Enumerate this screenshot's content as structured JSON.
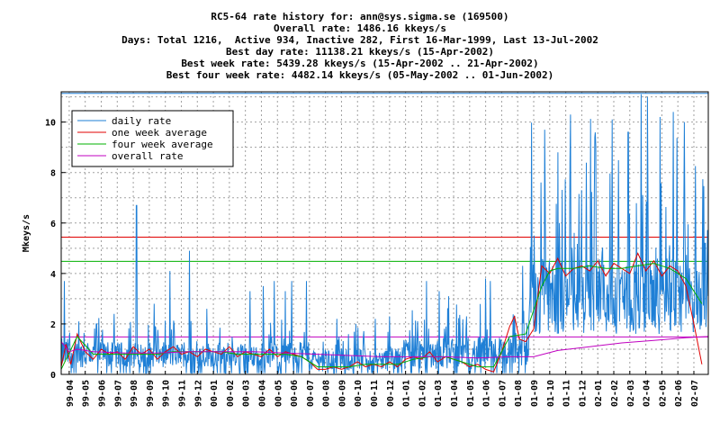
{
  "header": {
    "line1": "RC5-64 rate history for: ann@sys.sigma.se (169500)",
    "line2": "Overall rate: 1486.16 kkeys/s",
    "line3": "Days: Total 1216,  Active 934, Inactive 282, First 16-Mar-1999, Last 13-Jul-2002",
    "line4": "Best day rate: 11138.21 kkeys/s (15-Apr-2002)",
    "line5": "Best week rate: 5439.28 kkeys/s (15-Apr-2002 .. 21-Apr-2002)",
    "line6": "Best four week rate: 4482.14 kkeys/s (05-May-2002 .. 01-Jun-2002)"
  },
  "chart_data": {
    "type": "line",
    "ylabel": "Mkeys/s",
    "xlabel": "",
    "ylim": [
      0,
      11.2
    ],
    "yticks": [
      0,
      2,
      4,
      6,
      8,
      10
    ],
    "grid": true,
    "legend_position": "top-left",
    "x_categories": [
      "99-04",
      "99-05",
      "99-06",
      "99-07",
      "99-08",
      "99-09",
      "99-10",
      "99-11",
      "99-12",
      "00-01",
      "00-02",
      "00-03",
      "00-04",
      "00-05",
      "00-06",
      "00-07",
      "00-08",
      "00-09",
      "00-10",
      "00-11",
      "00-12",
      "01-01",
      "01-02",
      "01-03",
      "01-04",
      "01-05",
      "01-06",
      "01-07",
      "01-08",
      "01-09",
      "01-10",
      "01-11",
      "01-12",
      "02-01",
      "02-02",
      "02-03",
      "02-04",
      "02-05",
      "02-06",
      "02-07"
    ],
    "x_range_months": [
      0,
      40.4
    ],
    "series": [
      {
        "name": "daily rate",
        "color": "#1e7fd6",
        "values_summary": "daily points; approx 0.2-2.5 Mkeys/s through mid 2001 with spikes to ~6.7 at 99-08 and ~5.0 at 99-12, near 0 at 01-07, rising to 4-11 Mkeys/s from 01-09 to 02-07"
      },
      {
        "name": "one week average",
        "color": "#e00000",
        "points": [
          [
            0,
            0.3
          ],
          [
            0.3,
            1.2
          ],
          [
            0.6,
            0.4
          ],
          [
            1.0,
            1.6
          ],
          [
            1.5,
            0.9
          ],
          [
            2.0,
            0.6
          ],
          [
            2.5,
            1.0
          ],
          [
            3.0,
            0.8
          ],
          [
            3.5,
            0.9
          ],
          [
            4.0,
            0.6
          ],
          [
            4.5,
            1.1
          ],
          [
            5.0,
            0.8
          ],
          [
            5.5,
            1.0
          ],
          [
            6.0,
            0.6
          ],
          [
            6.5,
            0.9
          ],
          [
            7.0,
            1.1
          ],
          [
            7.5,
            0.8
          ],
          [
            8.0,
            0.9
          ],
          [
            8.5,
            0.7
          ],
          [
            9.0,
            1.0
          ],
          [
            9.5,
            0.9
          ],
          [
            10.0,
            0.8
          ],
          [
            10.5,
            1.1
          ],
          [
            11.0,
            0.7
          ],
          [
            11.5,
            0.9
          ],
          [
            12.0,
            0.8
          ],
          [
            12.5,
            0.7
          ],
          [
            13.0,
            1.0
          ],
          [
            13.5,
            0.7
          ],
          [
            14.0,
            0.9
          ],
          [
            14.5,
            0.8
          ],
          [
            15.0,
            0.7
          ],
          [
            15.5,
            0.5
          ],
          [
            16.0,
            0.2
          ],
          [
            16.5,
            0.2
          ],
          [
            17.0,
            0.3
          ],
          [
            17.5,
            0.2
          ],
          [
            18.0,
            0.3
          ],
          [
            18.5,
            0.5
          ],
          [
            19.0,
            0.3
          ],
          [
            19.5,
            0.4
          ],
          [
            20.0,
            0.3
          ],
          [
            20.5,
            0.5
          ],
          [
            21.0,
            0.3
          ],
          [
            21.5,
            0.6
          ],
          [
            22.0,
            0.7
          ],
          [
            22.5,
            0.6
          ],
          [
            23.0,
            0.9
          ],
          [
            23.5,
            0.5
          ],
          [
            24.0,
            0.7
          ],
          [
            24.5,
            0.6
          ],
          [
            25.0,
            0.5
          ],
          [
            25.5,
            0.3
          ],
          [
            26.0,
            0.4
          ],
          [
            26.5,
            0.2
          ],
          [
            27.0,
            0.1
          ],
          [
            27.5,
            0.9
          ],
          [
            28.0,
            1.9
          ],
          [
            28.3,
            2.3
          ],
          [
            28.6,
            1.4
          ],
          [
            29.0,
            1.3
          ],
          [
            29.5,
            1.8
          ],
          [
            30.0,
            4.3
          ],
          [
            30.5,
            4.0
          ],
          [
            31.0,
            4.6
          ],
          [
            31.5,
            3.9
          ],
          [
            32.0,
            4.2
          ],
          [
            32.5,
            4.3
          ],
          [
            33.0,
            4.1
          ],
          [
            33.5,
            4.5
          ],
          [
            34.0,
            3.9
          ],
          [
            34.5,
            4.4
          ],
          [
            35.0,
            4.2
          ],
          [
            35.5,
            4.0
          ],
          [
            36.0,
            4.8
          ],
          [
            36.5,
            4.1
          ],
          [
            37.0,
            4.5
          ],
          [
            37.5,
            3.9
          ],
          [
            38.0,
            4.3
          ],
          [
            38.5,
            4.1
          ],
          [
            39.0,
            3.5
          ],
          [
            39.5,
            2.0
          ],
          [
            40.0,
            0.4
          ]
        ]
      },
      {
        "name": "four week average",
        "color": "#00b000",
        "points": [
          [
            0,
            0.2
          ],
          [
            1.0,
            1.5
          ],
          [
            2.0,
            0.8
          ],
          [
            3.0,
            0.8
          ],
          [
            4.0,
            0.8
          ],
          [
            5.0,
            0.8
          ],
          [
            6.0,
            0.8
          ],
          [
            7.0,
            0.9
          ],
          [
            8.0,
            0.9
          ],
          [
            9.0,
            0.9
          ],
          [
            10.0,
            0.9
          ],
          [
            11.0,
            0.8
          ],
          [
            12.0,
            0.8
          ],
          [
            13.0,
            0.8
          ],
          [
            14.0,
            0.8
          ],
          [
            15.0,
            0.7
          ],
          [
            16.0,
            0.3
          ],
          [
            17.0,
            0.3
          ],
          [
            18.0,
            0.3
          ],
          [
            19.0,
            0.4
          ],
          [
            20.0,
            0.4
          ],
          [
            21.0,
            0.4
          ],
          [
            22.0,
            0.6
          ],
          [
            23.0,
            0.7
          ],
          [
            24.0,
            0.7
          ],
          [
            25.0,
            0.5
          ],
          [
            26.0,
            0.3
          ],
          [
            27.0,
            0.3
          ],
          [
            28.0,
            1.5
          ],
          [
            29.0,
            1.6
          ],
          [
            30.0,
            3.5
          ],
          [
            30.5,
            4.1
          ],
          [
            31.0,
            4.2
          ],
          [
            32.0,
            4.2
          ],
          [
            33.0,
            4.3
          ],
          [
            34.0,
            4.2
          ],
          [
            35.0,
            4.2
          ],
          [
            36.0,
            4.3
          ],
          [
            37.0,
            4.4
          ],
          [
            38.0,
            4.2
          ],
          [
            39.0,
            3.8
          ],
          [
            40.0,
            2.8
          ]
        ]
      },
      {
        "name": "overall rate",
        "color": "#c000c0",
        "points": [
          [
            0,
            1.3
          ],
          [
            0.5,
            0.9
          ],
          [
            1.0,
            1.0
          ],
          [
            2.0,
            0.9
          ],
          [
            4.0,
            0.85
          ],
          [
            6.0,
            0.85
          ],
          [
            8.0,
            0.9
          ],
          [
            10.0,
            0.9
          ],
          [
            12.0,
            0.9
          ],
          [
            14.0,
            0.85
          ],
          [
            16.0,
            0.8
          ],
          [
            18.0,
            0.75
          ],
          [
            20.0,
            0.7
          ],
          [
            22.0,
            0.7
          ],
          [
            24.0,
            0.7
          ],
          [
            26.0,
            0.65
          ],
          [
            28.0,
            0.7
          ],
          [
            29.5,
            0.7
          ],
          [
            31.0,
            0.95
          ],
          [
            33.0,
            1.1
          ],
          [
            35.0,
            1.25
          ],
          [
            37.0,
            1.35
          ],
          [
            39.0,
            1.45
          ],
          [
            40.4,
            1.5
          ]
        ]
      }
    ],
    "reference_lines": [
      {
        "value": 11.138,
        "color": "#1e7fd6"
      },
      {
        "value": 5.439,
        "color": "#e00000"
      },
      {
        "value": 4.482,
        "color": "#00b000"
      },
      {
        "value": 1.486,
        "color": "#c000c0"
      }
    ],
    "daily_profile": [
      {
        "from": 0,
        "to": 1.0,
        "base": 0.6,
        "amp": 1.2,
        "spikes": [
          [
            0.2,
            3.7
          ]
        ]
      },
      {
        "from": 1.0,
        "to": 15.5,
        "base": 0.7,
        "amp": 1.0,
        "spikes": [
          [
            4.7,
            6.7
          ],
          [
            1.1,
            2.1
          ],
          [
            2.2,
            2.0
          ],
          [
            3.3,
            2.4
          ],
          [
            5.8,
            2.8
          ],
          [
            6.8,
            4.1
          ],
          [
            8.0,
            4.9
          ],
          [
            9.1,
            2.6
          ],
          [
            11.8,
            3.3
          ],
          [
            12.6,
            3.5
          ],
          [
            13.3,
            3.7
          ],
          [
            14.0,
            3.3
          ],
          [
            14.4,
            3.7
          ],
          [
            15.3,
            3.7
          ]
        ]
      },
      {
        "from": 15.5,
        "to": 21.0,
        "base": 0.3,
        "amp": 0.9,
        "spikes": [
          [
            17.2,
            2.2
          ],
          [
            18.4,
            2.0
          ],
          [
            19.6,
            2.2
          ],
          [
            20.5,
            2.3
          ]
        ]
      },
      {
        "from": 21.0,
        "to": 27.0,
        "base": 0.5,
        "amp": 1.3,
        "spikes": [
          [
            22.8,
            3.7
          ],
          [
            23.6,
            3.3
          ],
          [
            24.2,
            3.1
          ],
          [
            25.3,
            2.3
          ],
          [
            26.5,
            3.8
          ],
          [
            26.8,
            3.7
          ]
        ]
      },
      {
        "from": 27.0,
        "to": 29.2,
        "base": 0.8,
        "amp": 1.2,
        "spikes": [
          [
            28.3,
            2.3
          ],
          [
            28.8,
            4.3
          ]
        ]
      },
      {
        "from": 29.2,
        "to": 40.4,
        "base": 4.0,
        "amp": 3.0,
        "spikes": [
          [
            30.2,
            9.7
          ],
          [
            31.0,
            8.8
          ],
          [
            31.8,
            10.3
          ],
          [
            32.5,
            7.3
          ],
          [
            33.3,
            9.4
          ],
          [
            34.4,
            10.1
          ],
          [
            35.4,
            9.6
          ],
          [
            36.2,
            11.1
          ],
          [
            36.6,
            11.0
          ],
          [
            37.4,
            10.2
          ],
          [
            38.2,
            10.4
          ],
          [
            38.9,
            10.0
          ],
          [
            39.6,
            10.2
          ],
          [
            40.2,
            5.2
          ]
        ]
      }
    ]
  }
}
